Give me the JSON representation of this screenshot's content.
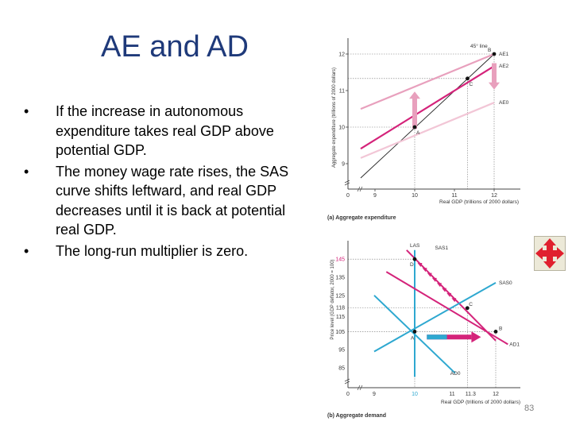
{
  "slide": {
    "title": "AE and AD",
    "bullets": [
      "If the increase in autonomous expenditure takes real GDP above potential GDP.",
      "The money wage rate rises, the SAS curve shifts leftward, and real GDP decreases until it is back at potential real GDP.",
      "The long-run multiplier is zero."
    ],
    "bullet_symbol": "•",
    "slide_number": "83",
    "move_icon": "move-arrows-icon"
  },
  "colors": {
    "title": "#1f3a7a",
    "magenta": "#d4237a",
    "pink": "#e8a0bd",
    "light_pink": "#f2c6d6",
    "cyan": "#2ea8d0",
    "icon_red": "#e0202e"
  },
  "chart_data": [
    {
      "type": "line",
      "caption": "(a) Aggregate expenditure",
      "xlabel": "Real GDP (trillions of 2000 dollars)",
      "ylabel": "Aggregate expenditure (trillions of 2000 dollars)",
      "x_ticks": [
        "0",
        "9",
        "10",
        "11",
        "12"
      ],
      "y_ticks": [
        "9",
        "10",
        "11",
        "12"
      ],
      "series": [
        {
          "name": "45° line",
          "x": [
            9,
            12
          ],
          "y": [
            9,
            12
          ]
        },
        {
          "name": "AE1",
          "x": [
            9,
            12
          ],
          "y": [
            10.67,
            12
          ]
        },
        {
          "name": "AE2",
          "x": [
            9,
            12
          ],
          "y": [
            9.67,
            11.67
          ]
        },
        {
          "name": "AE0",
          "x": [
            9,
            12
          ],
          "y": [
            9.33,
            10.67
          ]
        }
      ],
      "points": [
        {
          "label": "A",
          "x": 10,
          "y": 10
        },
        {
          "label": "B",
          "x": 12,
          "y": 12
        },
        {
          "label": "C",
          "x": 11.33,
          "y": 11.33
        }
      ]
    },
    {
      "type": "line",
      "caption": "(b) Aggregate demand",
      "xlabel": "Real GDP (trillions of 2000 dollars)",
      "ylabel": "Price level (GDP deflator, 2000 = 100)",
      "x_ticks": [
        "0",
        "9",
        "10",
        "11",
        "11.3",
        "12"
      ],
      "y_ticks": [
        "85",
        "95",
        "105",
        "115",
        "118",
        "125",
        "135",
        "145"
      ],
      "series": [
        {
          "name": "LAS",
          "x": [
            10,
            10
          ],
          "y": [
            80,
            150
          ]
        },
        {
          "name": "SAS1",
          "x": [
            9.8,
            12
          ],
          "y": [
            150,
            100
          ]
        },
        {
          "name": "SAS0",
          "x": [
            9,
            12
          ],
          "y": [
            94,
            132
          ]
        },
        {
          "name": "AD1",
          "x": [
            9.3,
            12.3
          ],
          "y": [
            138,
            98
          ]
        },
        {
          "name": "AD0",
          "x": [
            9,
            11
          ],
          "y": [
            125,
            82
          ]
        }
      ],
      "points": [
        {
          "label": "A",
          "x": 10,
          "y": 105
        },
        {
          "label": "B",
          "x": 12,
          "y": 105
        },
        {
          "label": "C",
          "x": 11.3,
          "y": 118
        },
        {
          "label": "D",
          "x": 10,
          "y": 145
        }
      ]
    }
  ]
}
